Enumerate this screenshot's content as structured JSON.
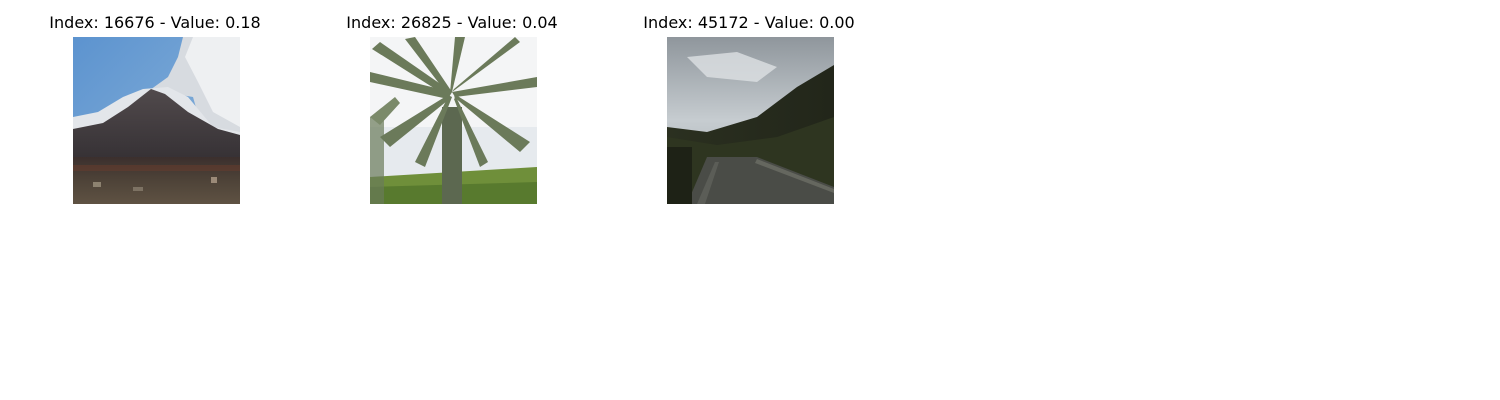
{
  "panels": [
    {
      "index": "16676",
      "value": "0.18",
      "title": "Index: 16676 - Value: 0.18"
    },
    {
      "index": "26825",
      "value": "0.04",
      "title": "Index: 26825 - Value: 0.04"
    },
    {
      "index": "45172",
      "value": "0.00",
      "title": "Index: 45172 - Value: 0.00"
    }
  ],
  "colors": {
    "sky_blue": "#6f9fd0",
    "cloud": "#e6e9ec",
    "mountain": "#3d3a3d",
    "ground_brown": "#4e4338",
    "palm_green": "#5a6a4a",
    "grass": "#6f8f3a",
    "storm_sky": "#a7adb2",
    "hill_dark": "#2a2e1c",
    "road": "#4a4c47"
  }
}
